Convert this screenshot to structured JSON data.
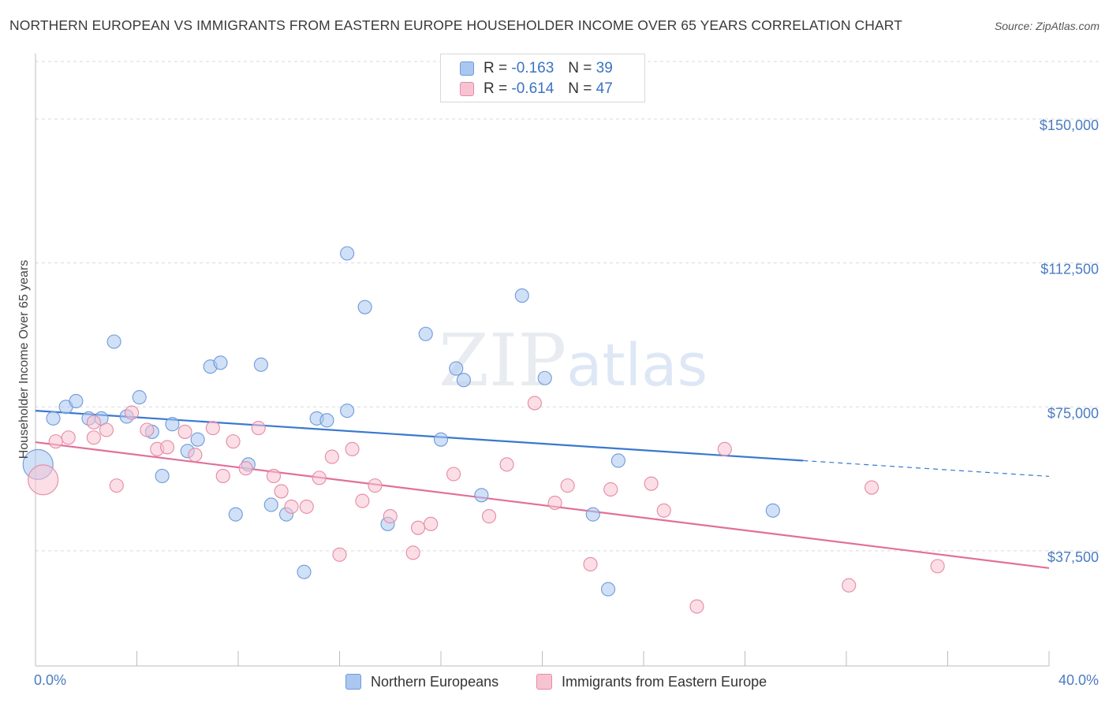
{
  "title": "NORTHERN EUROPEAN VS IMMIGRANTS FROM EASTERN EUROPE HOUSEHOLDER INCOME OVER 65 YEARS CORRELATION CHART",
  "source": "Source: ZipAtlas.com",
  "watermark": {
    "a": "ZIP",
    "b": "atlas"
  },
  "legend_top": [
    {
      "r_label": "R =",
      "r_value": "-0.163",
      "n_label": "N =",
      "n_value": "39",
      "color": "#a9c7f0",
      "border": "#6f9ad8"
    },
    {
      "r_label": "R =",
      "r_value": "-0.614",
      "n_label": "N =",
      "n_value": "47",
      "color": "#f7c3d2",
      "border": "#e58aa5"
    }
  ],
  "legend_bottom": [
    {
      "label": "Northern Europeans",
      "color": "#a9c7f0",
      "border": "#6f9ad8"
    },
    {
      "label": "Immigrants from Eastern Europe",
      "color": "#f7c3d2",
      "border": "#e58aa5"
    }
  ],
  "chart_data": {
    "type": "scatter",
    "title": "NORTHERN EUROPEAN VS IMMIGRANTS FROM EASTERN EUROPE HOUSEHOLDER INCOME OVER 65 YEARS CORRELATION CHART",
    "xlabel": "",
    "ylabel": "Householder Income Over 65 years",
    "xlim": [
      0,
      40
    ],
    "ylim": [
      7500,
      165000
    ],
    "x_tick_labels": [
      {
        "value": 0,
        "label": "0.0%"
      },
      {
        "value": 40,
        "label": "40.0%"
      }
    ],
    "x_minor_ticks": [
      0,
      4,
      8,
      12,
      16,
      20,
      24,
      28,
      32,
      36,
      40
    ],
    "y_ticks": [
      {
        "value": 150000,
        "label": "$150,000"
      },
      {
        "value": 112500,
        "label": "$112,500"
      },
      {
        "value": 75000,
        "label": "$75,000"
      },
      {
        "value": 37500,
        "label": "$37,500"
      }
    ],
    "grid": true,
    "series": [
      {
        "name": "Northern Europeans",
        "color": "#a9c7f0",
        "stroke": "#6f9ad8",
        "line_color": "#3a78d0",
        "trend": {
          "x1": 0,
          "y1": 74000,
          "x2": 30.3,
          "y2": 61000,
          "dash_to_x": 40,
          "dash_to_y": 56900
        },
        "points": [
          {
            "x": 0.1,
            "y": 60000,
            "big": true
          },
          {
            "x": 0.7,
            "y": 72000
          },
          {
            "x": 1.2,
            "y": 75000
          },
          {
            "x": 1.6,
            "y": 76500
          },
          {
            "x": 2.1,
            "y": 72000
          },
          {
            "x": 2.6,
            "y": 72000
          },
          {
            "x": 3.1,
            "y": 92000
          },
          {
            "x": 3.6,
            "y": 72500
          },
          {
            "x": 4.1,
            "y": 77500
          },
          {
            "x": 4.6,
            "y": 68500
          },
          {
            "x": 5.0,
            "y": 57000
          },
          {
            "x": 5.4,
            "y": 70500
          },
          {
            "x": 6.0,
            "y": 63500
          },
          {
            "x": 6.4,
            "y": 66500
          },
          {
            "x": 6.9,
            "y": 85500
          },
          {
            "x": 7.3,
            "y": 86500
          },
          {
            "x": 7.9,
            "y": 47000
          },
          {
            "x": 8.4,
            "y": 60000
          },
          {
            "x": 8.9,
            "y": 86000
          },
          {
            "x": 9.3,
            "y": 49500
          },
          {
            "x": 9.9,
            "y": 47000
          },
          {
            "x": 10.6,
            "y": 32000
          },
          {
            "x": 11.1,
            "y": 72000
          },
          {
            "x": 11.5,
            "y": 71500
          },
          {
            "x": 12.3,
            "y": 115000
          },
          {
            "x": 12.3,
            "y": 74000
          },
          {
            "x": 13.0,
            "y": 101000
          },
          {
            "x": 13.9,
            "y": 44500
          },
          {
            "x": 15.4,
            "y": 94000
          },
          {
            "x": 16.0,
            "y": 66500
          },
          {
            "x": 16.6,
            "y": 85000
          },
          {
            "x": 16.9,
            "y": 82000
          },
          {
            "x": 17.6,
            "y": 52000
          },
          {
            "x": 19.2,
            "y": 104000
          },
          {
            "x": 20.1,
            "y": 82500
          },
          {
            "x": 22.0,
            "y": 47000
          },
          {
            "x": 22.6,
            "y": 27500
          },
          {
            "x": 23.0,
            "y": 61000
          },
          {
            "x": 29.1,
            "y": 48000
          }
        ]
      },
      {
        "name": "Immigrants from Eastern Europe",
        "color": "#f7c3d2",
        "stroke": "#e58aa5",
        "line_color": "#e0709a",
        "trend": {
          "x1": 0,
          "y1": 65800,
          "x2": 40,
          "y2": 33000
        },
        "points": [
          {
            "x": 0.3,
            "y": 56000,
            "big": true
          },
          {
            "x": 0.8,
            "y": 66000
          },
          {
            "x": 1.3,
            "y": 67000
          },
          {
            "x": 2.3,
            "y": 71000
          },
          {
            "x": 2.3,
            "y": 67000
          },
          {
            "x": 2.8,
            "y": 69000
          },
          {
            "x": 3.2,
            "y": 54500
          },
          {
            "x": 3.8,
            "y": 73500
          },
          {
            "x": 4.4,
            "y": 69000
          },
          {
            "x": 4.8,
            "y": 64000
          },
          {
            "x": 5.2,
            "y": 64500
          },
          {
            "x": 5.9,
            "y": 68500
          },
          {
            "x": 6.3,
            "y": 62500
          },
          {
            "x": 7.0,
            "y": 69500
          },
          {
            "x": 7.4,
            "y": 57000
          },
          {
            "x": 7.8,
            "y": 66000
          },
          {
            "x": 8.3,
            "y": 59000
          },
          {
            "x": 8.8,
            "y": 69500
          },
          {
            "x": 9.4,
            "y": 57000
          },
          {
            "x": 9.7,
            "y": 53000
          },
          {
            "x": 10.1,
            "y": 49000
          },
          {
            "x": 10.7,
            "y": 49000
          },
          {
            "x": 11.2,
            "y": 56500
          },
          {
            "x": 11.7,
            "y": 62000
          },
          {
            "x": 12.0,
            "y": 36500
          },
          {
            "x": 12.5,
            "y": 64000
          },
          {
            "x": 12.9,
            "y": 50500
          },
          {
            "x": 13.4,
            "y": 54500
          },
          {
            "x": 14.0,
            "y": 46500
          },
          {
            "x": 14.9,
            "y": 37000
          },
          {
            "x": 15.1,
            "y": 43500
          },
          {
            "x": 15.6,
            "y": 44500
          },
          {
            "x": 16.5,
            "y": 57500
          },
          {
            "x": 17.9,
            "y": 46500
          },
          {
            "x": 18.6,
            "y": 60000
          },
          {
            "x": 19.7,
            "y": 76000
          },
          {
            "x": 20.5,
            "y": 50000
          },
          {
            "x": 21.0,
            "y": 54500
          },
          {
            "x": 21.9,
            "y": 34000
          },
          {
            "x": 22.7,
            "y": 53500
          },
          {
            "x": 24.3,
            "y": 55000
          },
          {
            "x": 24.8,
            "y": 48000
          },
          {
            "x": 26.1,
            "y": 23000
          },
          {
            "x": 27.2,
            "y": 64000
          },
          {
            "x": 32.1,
            "y": 28500
          },
          {
            "x": 33.0,
            "y": 54000
          },
          {
            "x": 35.6,
            "y": 33500
          }
        ]
      }
    ]
  }
}
